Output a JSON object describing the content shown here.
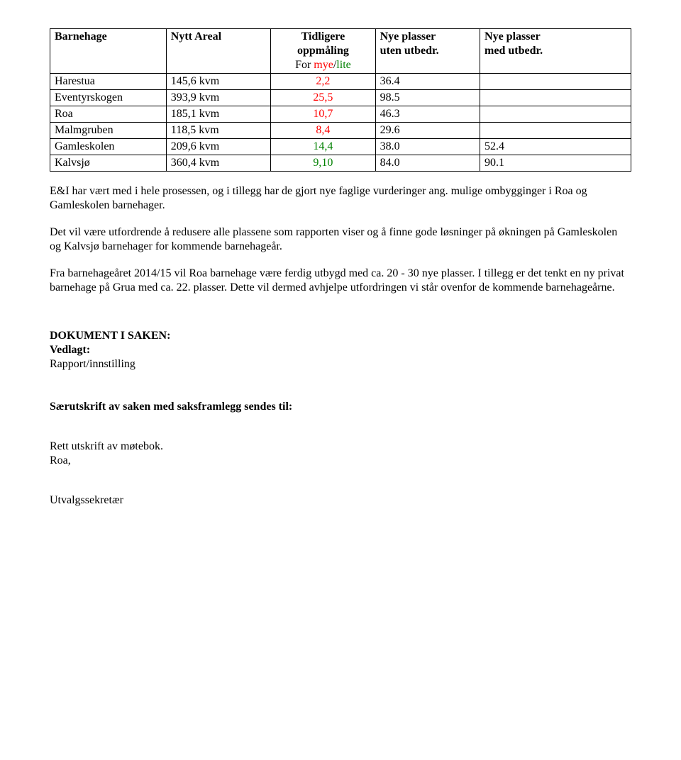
{
  "table": {
    "headers": {
      "col1": "Barnehage",
      "col2": "Nytt Areal",
      "col3_line1": "Tidligere",
      "col3_line2": "oppmåling",
      "col3_line3a": "For ",
      "col3_line3b": "mye",
      "col3_line3c": "/",
      "col3_line3d": "lite",
      "col4_line1": "Nye plasser",
      "col4_line2": "uten utbedr.",
      "col5_line1": "Nye plasser",
      "col5_line2": "med utbedr."
    },
    "rows": [
      {
        "name": "Harestua",
        "areal": "145,6 kvm",
        "tidligere": "2,2",
        "tidligere_class": "mye",
        "uten": "36.4",
        "med": ""
      },
      {
        "name": "Eventyrskogen",
        "areal": "393,9 kvm",
        "tidligere": "25,5",
        "tidligere_class": "mye",
        "uten": "98.5",
        "med": ""
      },
      {
        "name": "Roa",
        "areal": "185,1 kvm",
        "tidligere": "10,7",
        "tidligere_class": "mye",
        "uten": "46.3",
        "med": ""
      },
      {
        "name": "Malmgruben",
        "areal": "118,5 kvm",
        "tidligere": "8,4",
        "tidligere_class": "mye",
        "uten": "29.6",
        "med": ""
      },
      {
        "name": "Gamleskolen",
        "areal": "209,6 kvm",
        "tidligere": "14,4",
        "tidligere_class": "lite",
        "uten": "38.0",
        "med": "52.4"
      },
      {
        "name": "Kalvsjø",
        "areal": "360,4 kvm",
        "tidligere": "9,10",
        "tidligere_class": "lite",
        "uten": "84.0",
        "med": "90.1"
      }
    ],
    "col_widths": [
      "20%",
      "18%",
      "18%",
      "18%",
      "26%"
    ]
  },
  "paragraphs": {
    "p1": "E&I har vært med i hele prosessen, og i tillegg har de gjort nye faglige vurderinger ang. mulige ombygginger i Roa og Gamleskolen barnehager.",
    "p2": "Det vil være utfordrende å redusere alle plassene som rapporten viser og å finne gode løsninger på økningen på Gamleskolen og Kalvsjø barnehager for kommende barnehageår.",
    "p3": "Fra barnehageåret 2014/15 vil Roa barnehage være ferdig utbygd med ca. 20 - 30  nye plasser.  I tillegg er det tenkt en ny privat barnehage på Grua med ca. 22. plasser.   Dette vil dermed  avhjelpe utfordringen  vi står ovenfor de kommende barnehageårne."
  },
  "dokument": {
    "heading": "DOKUMENT I SAKEN:",
    "vedlagt": "Vedlagt:",
    "rapport": "Rapport/innstilling"
  },
  "saerutskrift": "Særutskrift av saken med saksframlegg sendes til:",
  "rett": {
    "line1": "Rett utskrift av møtebok.",
    "line2": "Roa,"
  },
  "signatur": "Utvalgssekretær"
}
